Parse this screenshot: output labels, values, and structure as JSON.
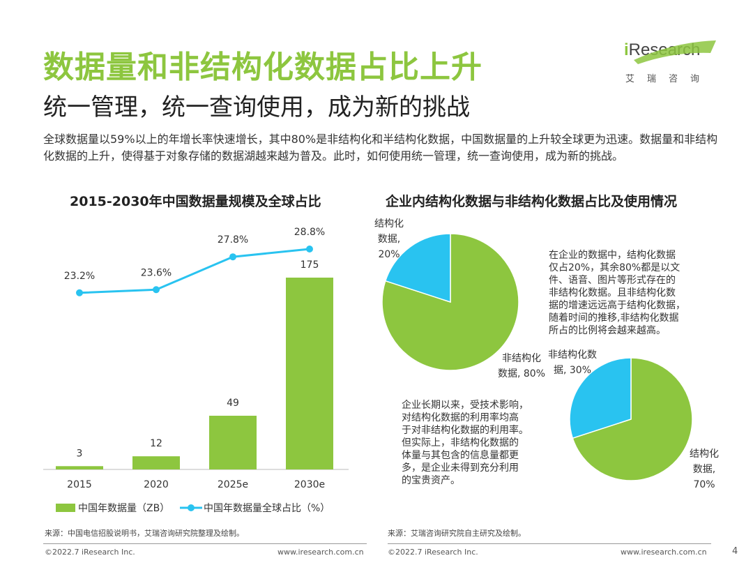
{
  "header": {
    "title": "数据量和非结构化数据占比上升",
    "subtitle": "统一管理，统一查询使用，成为新的挑战",
    "logo_text_i": "i",
    "logo_text_rest": "Research",
    "logo_cn": "艾瑞咨询"
  },
  "intro": "全球数据量以59%以上的年增长率快速增长，其中80%是非结构化和半结构化数据，中国数据量的上升较全球更为迅速。数据量和非结构化数据的上升，使得基于对象存储的数据湖越来越为普及。此时，如何使用统一管理，统一查询使用，成为新的挑战。",
  "colors": {
    "green": "#8dc63f",
    "blue": "#29c3f0",
    "title_green": "#8dc63f"
  },
  "chart_data": [
    {
      "type": "bar",
      "title": "2015-2030年中国数据量规模及全球占比",
      "categories": [
        "2015",
        "2020",
        "2025e",
        "2030e"
      ],
      "series": [
        {
          "name": "中国年数据量（ZB）",
          "type": "bar",
          "values": [
            3,
            12,
            49,
            175
          ],
          "labels": [
            "3",
            "12",
            "49",
            "175"
          ]
        },
        {
          "name": "中国年数据量全球占比（%）",
          "type": "line",
          "values": [
            23.2,
            23.6,
            27.8,
            28.8
          ],
          "labels": [
            "23.2%",
            "23.6%",
            "27.8%",
            "28.8%"
          ]
        }
      ],
      "legend_position": "bottom"
    },
    {
      "type": "pie",
      "title": "企业内结构化数据与非结构化数据占比及使用情况",
      "slices": [
        {
          "label": "结构化数据, 20%",
          "label_lines": [
            "结构化",
            "数据,",
            "20%"
          ],
          "value": 20,
          "color": "#29c3f0"
        },
        {
          "label": "非结构化数据, 80%",
          "label_lines": [
            "非结构化",
            "数据, 80%"
          ],
          "value": 80,
          "color": "#8dc63f"
        }
      ]
    },
    {
      "type": "pie",
      "title": "",
      "slices": [
        {
          "label": "非结构化数据, 30%",
          "label_lines": [
            "非结构化数",
            "据, 30%"
          ],
          "value": 30,
          "color": "#29c3f0"
        },
        {
          "label": "结构化数据, 70%",
          "label_lines": [
            "结构化",
            "数据,",
            "70%"
          ],
          "value": 70,
          "color": "#8dc63f"
        }
      ]
    }
  ],
  "notes": {
    "top": [
      "在企业的数据中，结构化数据",
      "仅占20%，其余80%都是以文",
      "件、语音、图片等形式存在的",
      "非结构化数据。且非结构化数",
      "据的增速远远高于结构化数据，",
      "随着时间的推移,非结构化数据",
      "所占的比例将会越来越高。"
    ],
    "bottom": [
      "企业长期以来，受技术影响，",
      "对结构化数据的利用率均高",
      "于对非结构化数据的利用率。",
      "但实际上，非结构化数据的",
      "体量与其包含的信息量都更",
      "多，是企业未得到充分利用",
      "的宝贵资产。"
    ]
  },
  "sources": {
    "left": "来源：中国电信招股说明书，艾瑞咨询研究院整理及绘制。",
    "right": "来源：艾瑞咨询研究院自主研究及绘制。"
  },
  "footer": {
    "copyright_left": "©2022.7 iResearch Inc.",
    "url_left": "www.iresearch.com.cn",
    "copyright_right": "©2022.7 iResearch Inc.",
    "url_right": "www.iresearch.com.cn",
    "page": "4"
  }
}
